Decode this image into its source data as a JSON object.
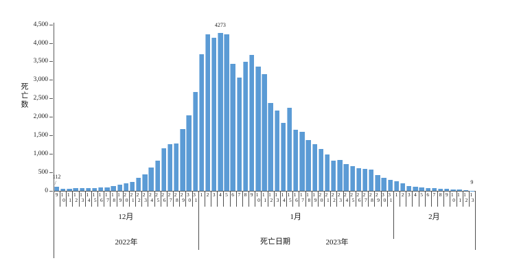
{
  "chart_data": {
    "type": "bar",
    "title": "",
    "ylabel": "死亡数",
    "xlabel": "死亡日期",
    "ylim": [
      0,
      4500
    ],
    "ytick_interval": 500,
    "yticks": [
      "0",
      "500",
      "1,000",
      "1,500",
      "2,000",
      "2,500",
      "3,000",
      "3,500",
      "4,000",
      "4,500"
    ],
    "grid": false,
    "legend": "none",
    "bar_color": "#5B9BD5",
    "bar_edge_color": "#9DC3E6",
    "axis_color": "#595959",
    "background_color": "#FFFFFF",
    "groups": [
      {
        "month": "12月",
        "days": [
          9,
          10,
          11,
          12,
          13,
          14,
          15,
          16,
          17,
          18,
          19,
          20,
          21,
          22,
          23,
          24,
          25,
          26,
          27,
          28,
          29,
          30,
          31
        ],
        "values": [
          112,
          65,
          62,
          68,
          72,
          78,
          82,
          88,
          100,
          124,
          167,
          199,
          248,
          347,
          446,
          638,
          812,
          1150,
          1270,
          1280,
          1680,
          2052,
          2673
        ]
      },
      {
        "month": "1月",
        "days": [
          1,
          2,
          3,
          4,
          5,
          6,
          7,
          8,
          9,
          10,
          11,
          12,
          13,
          14,
          15,
          16,
          17,
          18,
          19,
          20,
          21,
          22,
          23,
          24,
          25,
          26,
          27,
          28,
          29,
          30,
          31
        ],
        "values": [
          3700,
          4248,
          4148,
          4273,
          4243,
          3438,
          3078,
          3495,
          3692,
          3363,
          3173,
          2390,
          2180,
          1840,
          2260,
          1660,
          1600,
          1380,
          1270,
          1140,
          990,
          818,
          831,
          719,
          676,
          608,
          595,
          570,
          428,
          353,
          304
        ]
      },
      {
        "month": "2月",
        "days": [
          1,
          2,
          3,
          4,
          5,
          6,
          7,
          8,
          9,
          10,
          11,
          12,
          13
        ],
        "values": [
          260,
          199,
          136,
          117,
          99,
          80,
          69,
          61,
          50,
          43,
          31,
          24,
          9
        ]
      }
    ],
    "years": [
      {
        "label": "2022年",
        "group_span": [
          0,
          0
        ]
      },
      {
        "label": "2023年",
        "group_span": [
          1,
          2
        ]
      }
    ],
    "annotations": [
      {
        "bar_index": 0,
        "text": "112",
        "leader": true
      },
      {
        "bar_index": 26,
        "text": "4273",
        "leader": false
      },
      {
        "bar_index": 66,
        "text": "9",
        "leader": false
      }
    ]
  }
}
